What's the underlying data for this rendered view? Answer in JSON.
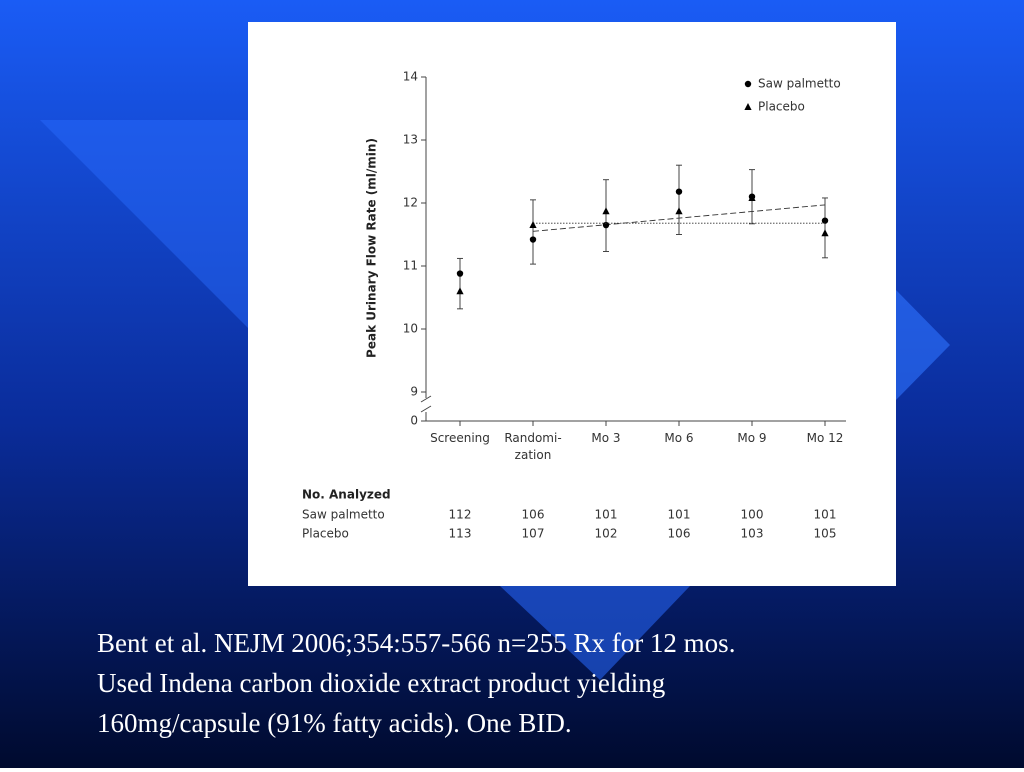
{
  "chart_data": {
    "type": "scatter",
    "ylabel": "Peak Urinary Flow Rate (ml/min)",
    "categories": [
      "Screening",
      "Randomi-\nzation",
      "Mo 3",
      "Mo 6",
      "Mo 9",
      "Mo 12"
    ],
    "series": [
      {
        "name": "Saw palmetto",
        "marker": "circle",
        "color": "#000000",
        "values": [
          10.88,
          11.42,
          11.65,
          12.18,
          12.1,
          11.72
        ],
        "trend": [
          11.55,
          11.97
        ],
        "trend_style": "dashed"
      },
      {
        "name": "Placebo",
        "marker": "triangle",
        "color": "#000000",
        "values": [
          10.6,
          11.65,
          11.87,
          11.87,
          12.08,
          11.52
        ],
        "trend": [
          11.68,
          11.68
        ],
        "trend_style": "dotted"
      }
    ],
    "error_bars": {
      "low": [
        10.32,
        11.03,
        11.23,
        11.5,
        11.67,
        11.13
      ],
      "high": [
        11.12,
        12.05,
        12.37,
        12.6,
        12.53,
        12.08
      ]
    },
    "ylim": [
      0,
      14
    ],
    "axis_break": [
      0,
      9
    ],
    "yticks": [
      0,
      9,
      10,
      11,
      12,
      13,
      14
    ],
    "grid": false,
    "legend": "upper right"
  },
  "analyzed_table": {
    "title": "No. Analyzed",
    "rows": [
      {
        "label": "Saw palmetto",
        "values": [
          112,
          106,
          101,
          101,
          100,
          101
        ]
      },
      {
        "label": "Placebo",
        "values": [
          113,
          107,
          102,
          106,
          103,
          105
        ]
      }
    ]
  },
  "caption": [
    "Bent et al. NEJM 2006;354:557-566  n=255 Rx for 12 mos.",
    "Used Indena carbon dioxide extract product yielding",
    "160mg/capsule (91% fatty acids). One BID."
  ]
}
